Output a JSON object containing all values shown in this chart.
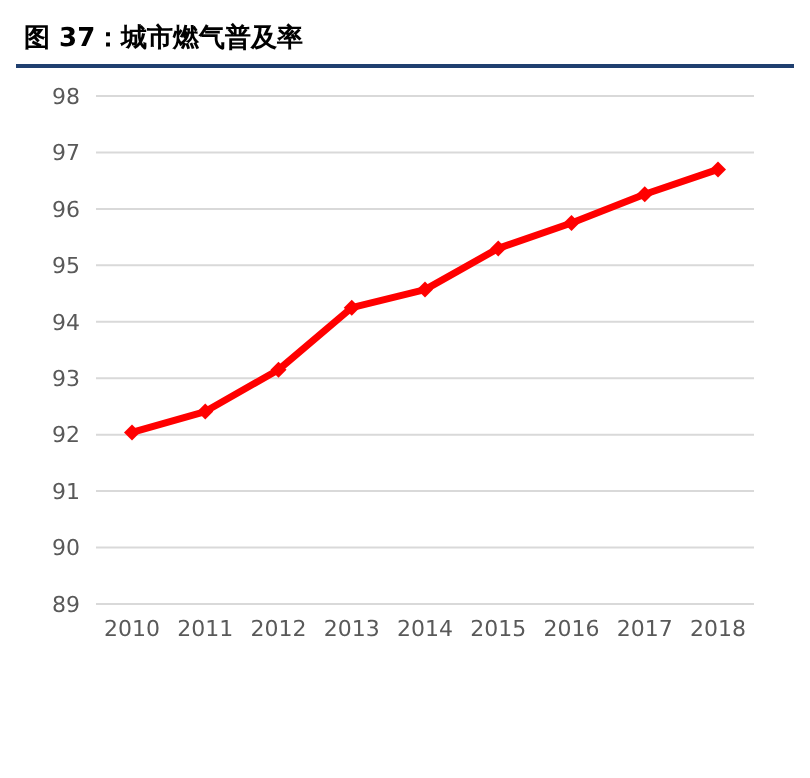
{
  "chart_data": {
    "type": "line",
    "title": "图 37：城市燃气普及率",
    "categories": [
      "2010",
      "2011",
      "2012",
      "2013",
      "2014",
      "2015",
      "2016",
      "2017",
      "2018"
    ],
    "series": [
      {
        "color": "#ff0000",
        "values": [
          92.04,
          92.41,
          93.15,
          94.25,
          94.57,
          95.3,
          95.75,
          96.26,
          96.7
        ]
      }
    ],
    "ylim": [
      89,
      98
    ],
    "yticks": [
      89,
      90,
      91,
      92,
      93,
      94,
      95,
      96,
      97,
      98
    ],
    "grid": "y",
    "marker": "diamond"
  }
}
